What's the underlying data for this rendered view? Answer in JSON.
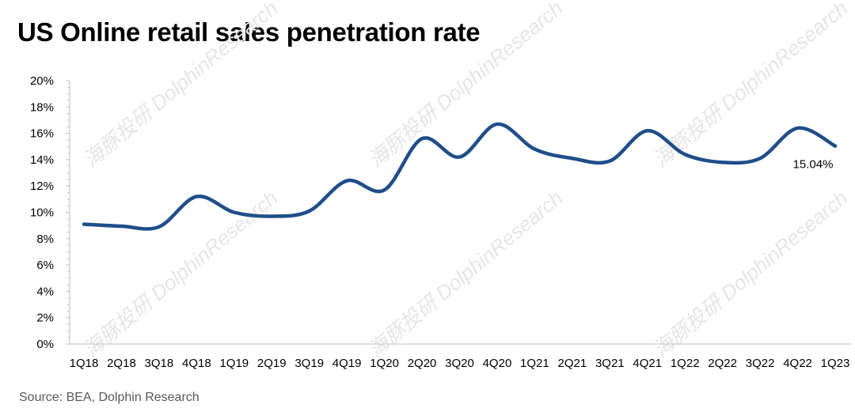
{
  "chart_data": {
    "type": "line",
    "title": "US Online retail sales penetration rate",
    "xlabel": "",
    "ylabel": "",
    "categories": [
      "1Q18",
      "2Q18",
      "3Q18",
      "4Q18",
      "1Q19",
      "2Q19",
      "3Q19",
      "4Q19",
      "1Q20",
      "2Q20",
      "3Q20",
      "4Q20",
      "1Q21",
      "2Q21",
      "3Q21",
      "4Q21",
      "1Q22",
      "2Q22",
      "3Q22",
      "4Q22",
      "1Q23"
    ],
    "series": [
      {
        "name": "Online retail sales penetration rate",
        "color": "#1f4e89",
        "values": [
          9.1,
          8.95,
          8.9,
          11.2,
          10.0,
          9.7,
          10.1,
          12.4,
          11.7,
          15.6,
          14.2,
          16.7,
          14.8,
          14.1,
          13.9,
          16.2,
          14.4,
          13.8,
          14.1,
          16.4,
          15.04
        ]
      }
    ],
    "ylim": [
      0,
      20
    ],
    "yticks": [
      "0%",
      "2%",
      "4%",
      "6%",
      "8%",
      "10%",
      "12%",
      "14%",
      "16%",
      "18%",
      "20%"
    ],
    "data_label": "15.04%",
    "grid": false,
    "source": "Source: BEA,  Dolphin Research",
    "watermark": "海豚投研 DolphinResearch"
  }
}
